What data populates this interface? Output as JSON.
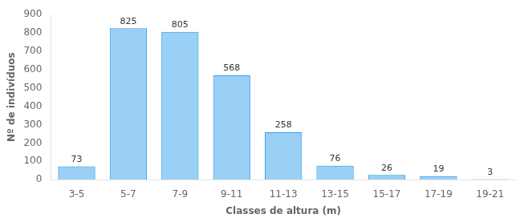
{
  "chart_data": {
    "type": "bar",
    "categories": [
      "3-5",
      "5-7",
      "7-9",
      "9-11",
      "11-13",
      "13-15",
      "15-17",
      "17-19",
      "19-21"
    ],
    "values": [
      73,
      825,
      805,
      568,
      258,
      76,
      26,
      19,
      3
    ],
    "xlabel": "Classes de altura (m)",
    "ylabel": "Nº de indivíduos",
    "ylim": [
      0,
      900
    ],
    "yticks": [
      0,
      100,
      200,
      300,
      400,
      500,
      600,
      700,
      800,
      900
    ],
    "grid": false,
    "data_labels": true
  }
}
